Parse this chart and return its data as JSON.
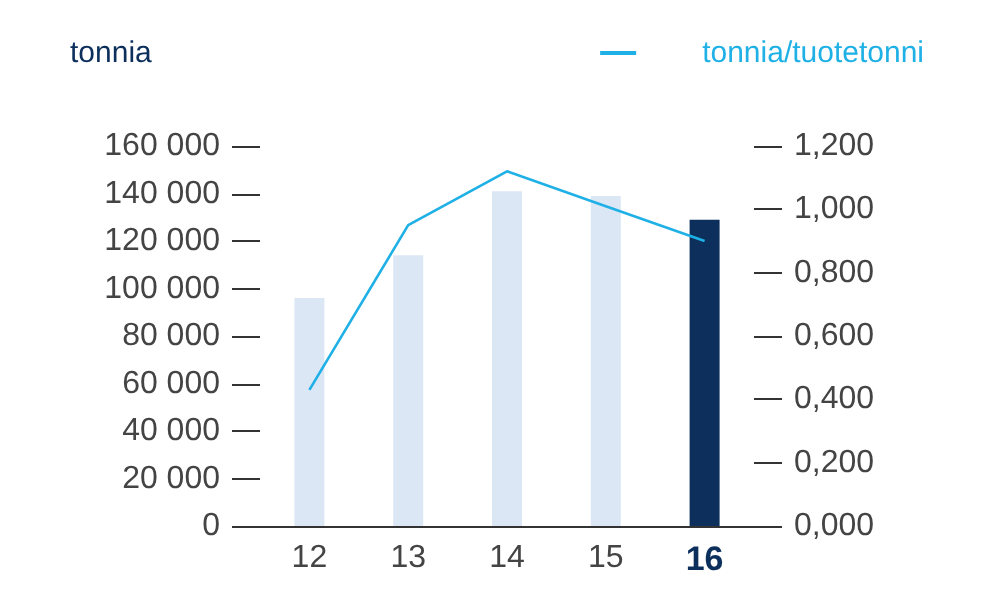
{
  "chart_data": {
    "type": "bar",
    "ylabel": "tonnia",
    "categories": [
      "12",
      "13",
      "14",
      "15",
      "16"
    ],
    "series": [
      {
        "colors": [
          "#dce7f6",
          "#dce7f6",
          "#dce7f6",
          "#dce7f6",
          "#0c2f5c"
        ],
        "values": [
          96000,
          114000,
          141000,
          139000,
          129000
        ]
      },
      {
        "type": "line",
        "name": "tonnia/tuotetonni",
        "color": "#1fb0e6",
        "axis": "y2",
        "values": [
          0.43,
          0.95,
          1.12,
          1.01,
          0.9
        ]
      }
    ],
    "ylim": [
      0,
      160000
    ],
    "yticks": [
      {
        "value": 0,
        "label": "0"
      },
      {
        "value": 20000,
        "label": "20 000"
      },
      {
        "value": 40000,
        "label": "40 000"
      },
      {
        "value": 60000,
        "label": "60 000"
      },
      {
        "value": 80000,
        "label": "80 000"
      },
      {
        "value": 100000,
        "label": "100 000"
      },
      {
        "value": 120000,
        "label": "120 000"
      },
      {
        "value": 140000,
        "label": "140 000"
      },
      {
        "value": 160000,
        "label": "160 000"
      }
    ],
    "y2lim": [
      0,
      1.2
    ],
    "y2ticks": [
      {
        "value": 0,
        "label": "0,000"
      },
      {
        "value": 0.2,
        "label": "0,200"
      },
      {
        "value": 0.4,
        "label": "0,400"
      },
      {
        "value": 0.6,
        "label": "0,600"
      },
      {
        "value": 0.8,
        "label": "0,800"
      },
      {
        "value": 1,
        "label": "1,000"
      },
      {
        "value": 1.2,
        "label": "1,200"
      }
    ],
    "legend": "top right",
    "grid": false,
    "marker": "none"
  }
}
